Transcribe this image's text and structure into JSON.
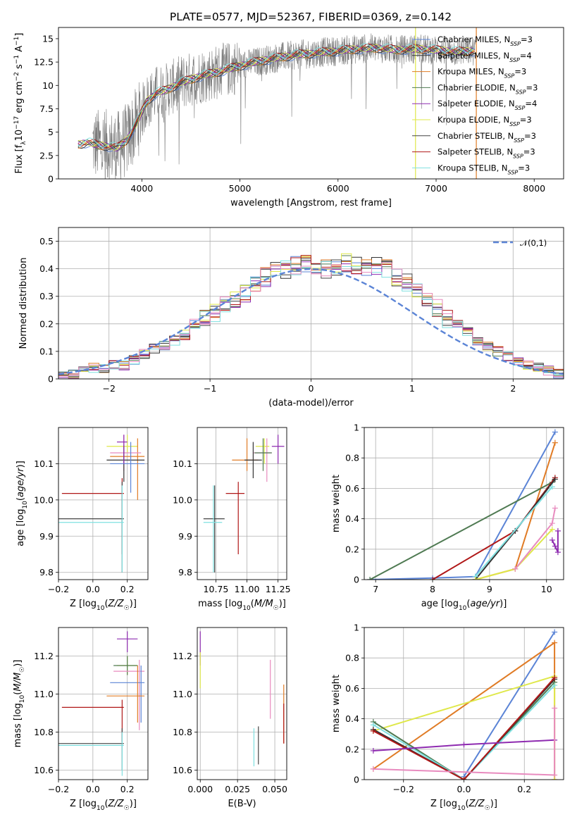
{
  "figure": {
    "title": "PLATE=0577, MJD=52367, FIBERID=0369, z=0.142"
  },
  "chart_data": [
    {
      "id": "spectrum",
      "type": "line",
      "title": "PLATE=0577, MJD=52367, FIBERID=0369, z=0.142",
      "xlabel": "wavelength [Angstrom, rest frame]",
      "ylabel": "Flux [f_λ10^-17 erg cm^-2 s^-1 A^-1]",
      "xlim": [
        3150,
        8300
      ],
      "ylim": [
        0,
        16.2
      ],
      "xticks": [
        4000,
        5000,
        6000,
        7000,
        8000
      ],
      "yticks": [
        0.0,
        2.5,
        5.0,
        7.5,
        10.0,
        12.5,
        15.0
      ],
      "legend_position": "upper-right",
      "series": [
        {
          "name": "Chabrier MILES",
          "nssp": "3",
          "color": "#5b84d6"
        },
        {
          "name": "Salpeter MILES",
          "nssp": "4",
          "color": "#333333"
        },
        {
          "name": "Kroupa MILES",
          "nssp": "3",
          "color": "#e07b25"
        },
        {
          "name": "Chabrier ELODIE",
          "nssp": "3",
          "color": "#4f7a52"
        },
        {
          "name": "Salpeter ELODIE",
          "nssp": "4",
          "color": "#8e2bb0"
        },
        {
          "name": "Kroupa ELODIE",
          "nssp": "3",
          "color": "#dfe84a"
        },
        {
          "name": "Chabrier STELIB",
          "nssp": "3",
          "color": "#444444"
        },
        {
          "name": "Salpeter STELIB",
          "nssp": "3",
          "color": "#b01818"
        },
        {
          "name": "Kroupa STELIB",
          "nssp": "3",
          "color": "#7fe0e0"
        }
      ],
      "model_curve": {
        "x": [
          3350,
          3450,
          3550,
          3650,
          3750,
          3850,
          3950,
          4050,
          4150,
          4250,
          4400,
          4600,
          4800,
          5000,
          5200,
          5400,
          5600,
          5800,
          6000,
          6200,
          6400,
          6600,
          6800,
          7000,
          7200,
          7400
        ],
        "y": [
          3.7,
          3.9,
          3.6,
          3.5,
          3.3,
          4.2,
          6.0,
          8.3,
          9.2,
          9.5,
          10.3,
          11.0,
          11.5,
          12.1,
          12.6,
          13.0,
          13.3,
          13.5,
          13.7,
          13.9,
          14.0,
          13.8,
          13.9,
          13.8,
          13.6,
          13.7
        ]
      },
      "data_range": [
        3500,
        7400
      ],
      "cutoff_lines": [
        {
          "x": 6790,
          "color": "#dfe84a"
        },
        {
          "x": 7410,
          "color": "#e07b25"
        }
      ]
    },
    {
      "id": "residuals",
      "type": "histogram",
      "xlabel": "(data-model)/error",
      "ylabel": "Normed distribution",
      "xlim": [
        -2.5,
        2.5
      ],
      "ylim": [
        0,
        0.55
      ],
      "xticks": [
        -2,
        -1,
        0,
        1,
        2
      ],
      "yticks": [
        0.0,
        0.1,
        0.2,
        0.3,
        0.4,
        0.5
      ],
      "legend": [
        {
          "name": "𝒩(0,1)",
          "color": "#5b84d6",
          "dashed": true
        }
      ],
      "legend_position": "upper-right",
      "bin_width": 0.1,
      "bin_start": -2.5,
      "values": [
        0.02,
        0.02,
        0.03,
        0.04,
        0.04,
        0.05,
        0.05,
        0.07,
        0.09,
        0.11,
        0.12,
        0.14,
        0.16,
        0.2,
        0.22,
        0.24,
        0.27,
        0.29,
        0.31,
        0.34,
        0.37,
        0.39,
        0.4,
        0.41,
        0.42,
        0.41,
        0.4,
        0.41,
        0.42,
        0.41,
        0.4,
        0.41,
        0.4,
        0.37,
        0.35,
        0.32,
        0.3,
        0.26,
        0.22,
        0.2,
        0.17,
        0.14,
        0.12,
        0.1,
        0.08,
        0.06,
        0.05,
        0.04,
        0.03,
        0.02
      ],
      "gaussian": {
        "mean": 0,
        "sigma": 1
      }
    },
    {
      "id": "age-vs-Z",
      "type": "scatter",
      "xlabel": "Z [log10(Z/Z☉)]",
      "ylabel": "age [log10(age/yr)]",
      "xlim": [
        -0.2,
        0.32
      ],
      "ylim": [
        9.78,
        10.2
      ],
      "xticks": [
        -0.2,
        0.0,
        0.2
      ],
      "xticklabels": [
        "−0.2",
        "0.0",
        "0.2"
      ],
      "yticks": [
        9.8,
        9.9,
        10.0,
        10.1
      ],
      "yticklabels": [
        "9.8",
        "9.9",
        "10.0",
        "10.1"
      ],
      "points": [
        {
          "x": 0.2,
          "y": 10.148,
          "xlo": 0.08,
          "xhi": 0.26,
          "ylo": 10.13,
          "yhi": 10.18,
          "color": "#dfe84a"
        },
        {
          "x": 0.26,
          "y": 10.12,
          "xlo": 0.1,
          "xhi": 0.3,
          "ylo": 10.0,
          "yhi": 10.17,
          "color": "#e07b25"
        },
        {
          "x": 0.18,
          "y": 10.13,
          "xlo": 0.1,
          "xhi": 0.28,
          "ylo": 10.08,
          "yhi": 10.18,
          "color": "#e88bbf"
        },
        {
          "x": 0.18,
          "y": 10.11,
          "xlo": 0.08,
          "xhi": 0.3,
          "ylo": 10.05,
          "yhi": 10.15,
          "color": "#333333"
        },
        {
          "x": 0.22,
          "y": 10.1,
          "xlo": 0.1,
          "xhi": 0.3,
          "ylo": 10.02,
          "yhi": 10.16,
          "color": "#5b84d6"
        },
        {
          "x": 0.18,
          "y": 10.16,
          "xlo": 0.14,
          "xhi": 0.2,
          "ylo": 10.1,
          "yhi": 10.18,
          "color": "#8e2bb0"
        },
        {
          "x": 0.17,
          "y": 10.018,
          "xlo": -0.18,
          "xhi": 0.18,
          "ylo": 9.85,
          "yhi": 10.06,
          "color": "#b01818"
        },
        {
          "x": 0.17,
          "y": 9.948,
          "xlo": -0.2,
          "xhi": 0.18,
          "ylo": 9.8,
          "yhi": 10.05,
          "color": "#444444"
        },
        {
          "x": 0.17,
          "y": 9.938,
          "xlo": -0.2,
          "xhi": 0.18,
          "ylo": 9.8,
          "yhi": 10.04,
          "color": "#7fe0e0"
        }
      ]
    },
    {
      "id": "age-vs-mass",
      "type": "scatter",
      "xlabel": "mass [log10(M/M☉)]",
      "ylabel": "",
      "xlim": [
        10.6,
        11.32
      ],
      "ylim": [
        9.78,
        10.2
      ],
      "xticks": [
        10.75,
        11.0,
        11.25
      ],
      "xticklabels": [
        "10.75",
        "11.00",
        "11.25"
      ],
      "yticks": [
        9.8,
        9.9,
        10.0,
        10.1
      ],
      "yticklabels": [
        "9.8",
        "9.9",
        "10.0",
        "10.1"
      ],
      "points": [
        {
          "x": 11.14,
          "y": 10.148,
          "xlo": 11.07,
          "xhi": 11.18,
          "ylo": 10.1,
          "yhi": 10.17,
          "color": "#dfe84a"
        },
        {
          "x": 11.0,
          "y": 10.11,
          "xlo": 10.88,
          "xhi": 11.09,
          "ylo": 10.08,
          "yhi": 10.17,
          "color": "#e07b25"
        },
        {
          "x": 11.16,
          "y": 10.13,
          "xlo": 11.05,
          "xhi": 11.2,
          "ylo": 10.05,
          "yhi": 10.17,
          "color": "#e88bbf"
        },
        {
          "x": 11.05,
          "y": 10.11,
          "xlo": 10.98,
          "xhi": 11.12,
          "ylo": 10.06,
          "yhi": 10.16,
          "color": "#333333"
        },
        {
          "x": 11.13,
          "y": 10.13,
          "xlo": 11.06,
          "xhi": 11.2,
          "ylo": 10.08,
          "yhi": 10.17,
          "color": "#4f7a52"
        },
        {
          "x": 11.25,
          "y": 10.148,
          "xlo": 11.2,
          "xhi": 11.3,
          "ylo": 10.1,
          "yhi": 10.18,
          "color": "#8e2bb0"
        },
        {
          "x": 10.93,
          "y": 10.018,
          "xlo": 10.83,
          "xhi": 10.98,
          "ylo": 9.85,
          "yhi": 10.05,
          "color": "#b01818"
        },
        {
          "x": 10.74,
          "y": 9.948,
          "xlo": 10.65,
          "xhi": 10.82,
          "ylo": 9.8,
          "yhi": 10.04,
          "color": "#444444"
        },
        {
          "x": 10.73,
          "y": 9.938,
          "xlo": 10.65,
          "xhi": 10.8,
          "ylo": 9.8,
          "yhi": 10.04,
          "color": "#7fe0e0"
        }
      ]
    },
    {
      "id": "mass-weight-vs-age",
      "type": "line",
      "xlabel": "age [log10(age/yr)]",
      "ylabel": "mass weight",
      "xlim": [
        6.8,
        10.3
      ],
      "ylim": [
        0,
        1.0
      ],
      "xticks": [
        7,
        8,
        9,
        10
      ],
      "yticks": [
        0.0,
        0.2,
        0.4,
        0.6,
        0.8,
        1.0
      ],
      "series": [
        {
          "color": "#5b84d6",
          "x": [
            6.9,
            8.0,
            8.75,
            10.15
          ],
          "y": [
            0.0,
            0.01,
            0.02,
            0.97
          ]
        },
        {
          "color": "#e07b25",
          "x": [
            8.75,
            9.45,
            10.15
          ],
          "y": [
            0.0,
            0.07,
            0.9
          ]
        },
        {
          "color": "#4f7a52",
          "x": [
            6.9,
            10.1
          ],
          "y": [
            0.0,
            0.64
          ]
        },
        {
          "color": "#b01818",
          "x": [
            8.0,
            9.45,
            10.15
          ],
          "y": [
            0.0,
            0.32,
            0.67
          ]
        },
        {
          "color": "#333333",
          "x": [
            8.75,
            9.45,
            10.15
          ],
          "y": [
            0.0,
            0.32,
            0.66
          ]
        },
        {
          "color": "#7fe0e0",
          "x": [
            8.75,
            10.1
          ],
          "y": [
            0.02,
            0.61
          ]
        },
        {
          "color": "#dfe84a",
          "x": [
            8.75,
            9.45,
            10.1
          ],
          "y": [
            0.0,
            0.07,
            0.33
          ]
        },
        {
          "color": "#e88bbf",
          "x": [
            9.45,
            10.1,
            10.15
          ],
          "y": [
            0.07,
            0.37,
            0.47
          ]
        },
        {
          "color": "#8e2bb0",
          "x": [
            10.1,
            10.15,
            10.2,
            10.2
          ],
          "y": [
            0.26,
            0.22,
            0.18,
            0.32
          ]
        }
      ]
    },
    {
      "id": "mass-vs-Z",
      "type": "scatter",
      "xlabel": "Z [log10(Z/Z☉)]",
      "ylabel": "mass [log10(M/M☉)]",
      "xlim": [
        -0.2,
        0.32
      ],
      "ylim": [
        10.55,
        11.35
      ],
      "xticks": [
        -0.2,
        0.0,
        0.2
      ],
      "xticklabels": [
        "−0.2",
        "0.0",
        "0.2"
      ],
      "yticks": [
        10.6,
        10.8,
        11.0,
        11.2
      ],
      "yticklabels": [
        "10.6",
        "10.8",
        "11.0",
        "11.2"
      ],
      "points": [
        {
          "x": 0.2,
          "y": 11.29,
          "xlo": 0.14,
          "xhi": 0.26,
          "ylo": 11.22,
          "yhi": 11.33,
          "color": "#8e2bb0"
        },
        {
          "x": 0.2,
          "y": 11.15,
          "xlo": 0.14,
          "xhi": 0.26,
          "ylo": 11.1,
          "yhi": 11.2,
          "color": "#dfe84a"
        },
        {
          "x": 0.2,
          "y": 11.15,
          "xlo": 0.12,
          "xhi": 0.26,
          "ylo": 11.1,
          "yhi": 11.2,
          "color": "#4f7a52"
        },
        {
          "x": 0.27,
          "y": 11.12,
          "xlo": 0.12,
          "xhi": 0.3,
          "ylo": 10.81,
          "yhi": 11.18,
          "color": "#e88bbf"
        },
        {
          "x": 0.28,
          "y": 11.06,
          "xlo": 0.1,
          "xhi": 0.3,
          "ylo": 10.85,
          "yhi": 11.15,
          "color": "#5b84d6"
        },
        {
          "x": 0.26,
          "y": 10.99,
          "xlo": 0.08,
          "xhi": 0.3,
          "ylo": 10.85,
          "yhi": 11.15,
          "color": "#e07b25"
        },
        {
          "x": 0.17,
          "y": 10.93,
          "xlo": -0.18,
          "xhi": 0.18,
          "ylo": 10.75,
          "yhi": 10.97,
          "color": "#b01818"
        },
        {
          "x": 0.17,
          "y": 10.74,
          "xlo": -0.2,
          "xhi": 0.18,
          "ylo": 10.6,
          "yhi": 10.82,
          "color": "#444444"
        },
        {
          "x": 0.17,
          "y": 10.73,
          "xlo": -0.2,
          "xhi": 0.18,
          "ylo": 10.57,
          "yhi": 10.8,
          "color": "#7fe0e0"
        }
      ]
    },
    {
      "id": "mass-vs-ebv",
      "type": "scatter",
      "xlabel": "E(B-V)",
      "ylabel": "",
      "xlim": [
        -0.002,
        0.058
      ],
      "ylim": [
        10.55,
        11.35
      ],
      "xticks": [
        0.0,
        0.025,
        0.05
      ],
      "xticklabels": [
        "0.000",
        "0.025",
        "0.050"
      ],
      "yticks": [
        10.6,
        10.8,
        11.0,
        11.2
      ],
      "yticklabels": [
        "10.6",
        "10.8",
        "11.0",
        "11.2"
      ],
      "points": [
        {
          "x": 0.0,
          "y": 11.24,
          "xlo": 0.0,
          "xhi": 0.0,
          "ylo": 11.15,
          "yhi": 11.33,
          "color": "#8e2bb0"
        },
        {
          "x": 0.0,
          "y": 11.12,
          "xlo": 0.0,
          "xhi": 0.0,
          "ylo": 11.03,
          "yhi": 11.22,
          "color": "#dfe84a"
        },
        {
          "x": 0.047,
          "y": 11.02,
          "xlo": 0.047,
          "xhi": 0.047,
          "ylo": 10.87,
          "yhi": 11.18,
          "color": "#e88bbf"
        },
        {
          "x": 0.056,
          "y": 10.95,
          "xlo": 0.056,
          "xhi": 0.056,
          "ylo": 10.74,
          "yhi": 11.05,
          "color": "#e07b25"
        },
        {
          "x": 0.056,
          "y": 10.85,
          "xlo": 0.056,
          "xhi": 0.056,
          "ylo": 10.74,
          "yhi": 10.95,
          "color": "#b01818"
        },
        {
          "x": 0.039,
          "y": 10.73,
          "xlo": 0.039,
          "xhi": 0.039,
          "ylo": 10.63,
          "yhi": 10.83,
          "color": "#444444"
        },
        {
          "x": 0.036,
          "y": 10.72,
          "xlo": 0.036,
          "xhi": 0.036,
          "ylo": 10.62,
          "yhi": 10.82,
          "color": "#7fe0e0"
        }
      ]
    },
    {
      "id": "mass-weight-vs-Z",
      "type": "line",
      "xlabel": "Z [log10(Z/Z☉)]",
      "ylabel": "mass weight",
      "xlim": [
        -0.33,
        0.33
      ],
      "ylim": [
        0,
        1.0
      ],
      "xticks": [
        -0.2,
        0.0,
        0.2
      ],
      "xticklabels": [
        "−0.2",
        "0.0",
        "0.2"
      ],
      "yticks": [
        0.0,
        0.2,
        0.4,
        0.6,
        0.8,
        1.0
      ],
      "series": [
        {
          "color": "#5b84d6",
          "x": [
            0.0,
            0.3
          ],
          "y": [
            0.02,
            0.97
          ]
        },
        {
          "color": "#e07b25",
          "x": [
            -0.3,
            0.3,
            0.3
          ],
          "y": [
            0.07,
            0.9,
            0.0
          ]
        },
        {
          "color": "#dfe84a",
          "x": [
            -0.3,
            0.3,
            0.3
          ],
          "y": [
            0.32,
            0.68,
            0.0
          ]
        },
        {
          "color": "#4f7a52",
          "x": [
            -0.3,
            0.0,
            0.3
          ],
          "y": [
            0.38,
            0.0,
            0.64
          ]
        },
        {
          "color": "#7fe0e0",
          "x": [
            -0.3,
            0.0,
            0.3
          ],
          "y": [
            0.36,
            0.0,
            0.62
          ]
        },
        {
          "color": "#333333",
          "x": [
            -0.3,
            0.0,
            0.3
          ],
          "y": [
            0.33,
            0.0,
            0.66
          ]
        },
        {
          "color": "#b01818",
          "x": [
            -0.3,
            0.0,
            0.3
          ],
          "y": [
            0.32,
            0.0,
            0.67
          ]
        },
        {
          "color": "#8e2bb0",
          "x": [
            -0.3,
            0.0,
            0.3
          ],
          "y": [
            0.19,
            0.23,
            0.26
          ]
        },
        {
          "color": "#e88bbf",
          "x": [
            -0.3,
            0.3,
            0.3
          ],
          "y": [
            0.07,
            0.03,
            0.47
          ]
        }
      ]
    }
  ]
}
